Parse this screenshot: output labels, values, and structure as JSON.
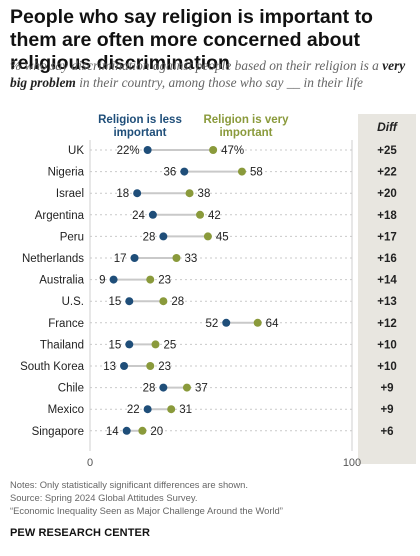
{
  "title": "People who say religion is important to them are often more concerned about religious discrimination",
  "subtitle_part1": "% who say discrimination against people based on their religion is a ",
  "subtitle_emphasis": "very big problem",
  "subtitle_part2": " in their country, among those who say __ in their life",
  "colors": {
    "less_important": "#1f4e79",
    "very_important": "#8a9a3b",
    "diff_bg": "#e8e6e0",
    "gridline": "#cfcfcf",
    "connector": "#c9c9c9"
  },
  "chart_data": {
    "type": "dot",
    "categories": [
      "UK",
      "Nigeria",
      "Israel",
      "Argentina",
      "Peru",
      "Netherlands",
      "Australia",
      "U.S.",
      "France",
      "Thailand",
      "South Korea",
      "Chile",
      "Mexico",
      "Singapore"
    ],
    "series": [
      {
        "name": "Religion is less important",
        "values": [
          22,
          36,
          18,
          24,
          28,
          17,
          9,
          15,
          52,
          15,
          13,
          28,
          22,
          14
        ]
      },
      {
        "name": "Religion is very important",
        "values": [
          47,
          58,
          38,
          42,
          45,
          33,
          23,
          28,
          64,
          25,
          23,
          37,
          31,
          20
        ]
      }
    ],
    "value_labels_first_row_suffix": "%",
    "diff_header": "Diff",
    "diff": [
      "+25",
      "+22",
      "+20",
      "+18",
      "+17",
      "+16",
      "+14",
      "+13",
      "+12",
      "+10",
      "+10",
      "+9",
      "+9",
      "+6"
    ],
    "xlim": [
      0,
      100
    ],
    "xtick_labels": [
      "0",
      "100"
    ]
  },
  "legend": {
    "less_important_line1": "Religion is less",
    "less_important_line2": "important",
    "very_important_line1": "Religion is very",
    "very_important_line2": "important"
  },
  "notes": {
    "line1": "Notes: Only statistically significant differences are shown.",
    "line2": "Source: Spring 2024 Global Attitudes Survey.",
    "line3": "“Economic Inequality Seen as Major Challenge Around the World”"
  },
  "brand": "PEW RESEARCH CENTER"
}
